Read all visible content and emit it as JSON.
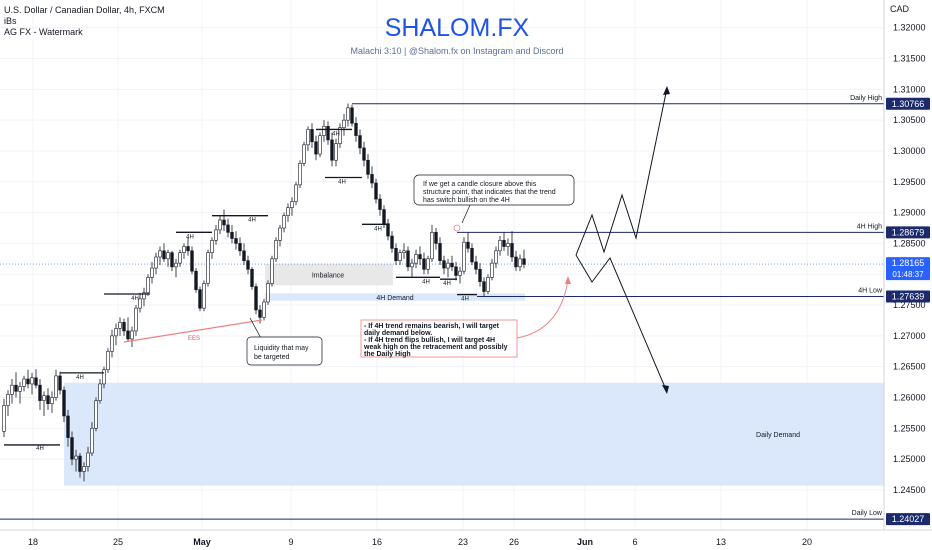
{
  "header": {
    "symbol_line": "U.S. Dollar / Canadian Dollar, 4h, FXCM",
    "indicator_1": "iBs",
    "indicator_2": "AG FX - Watermark",
    "brand": "SHALOM.FX",
    "tagline": "Malachi 3:10 | @Shalom.fx on Instagram and Discord",
    "currency": "CAD"
  },
  "colors": {
    "candle": "#131722",
    "brand": "#1e53e5",
    "level_line": "#1a2a6c",
    "label_bg": "#1a2a6c",
    "demand_fill": "#dbe8fc",
    "imbalance_fill": "#e8e8e8",
    "ees_line": "#f08080",
    "note_border": "#f08080",
    "grid": "#f0f3fa"
  },
  "chart_data": {
    "type": "candlestick",
    "y_axis": {
      "ylim": [
        1.2385,
        1.3245
      ],
      "ticks": [
        "1.32000",
        "1.31500",
        "1.31000",
        "1.30500",
        "1.30000",
        "1.29500",
        "1.29000",
        "1.28500",
        "1.28000",
        "1.27500",
        "1.27000",
        "1.26500",
        "1.26000",
        "1.25500",
        "1.25000",
        "1.24500"
      ]
    },
    "x_axis": {
      "tick_labels": [
        "18",
        "25",
        "May",
        "9",
        "16",
        "23",
        "26",
        "Jun",
        "6",
        "13",
        "20"
      ]
    },
    "current_price": {
      "value": "1.28165",
      "countdown": "01:48:37"
    },
    "levels": [
      {
        "name": "Daily High",
        "price": 1.30766,
        "label": "1.30766"
      },
      {
        "name": "4H High",
        "price": 1.28679,
        "label": "1.28679"
      },
      {
        "name": "4H Low",
        "price": 1.27639,
        "label": "1.27639"
      },
      {
        "name": "Daily Low",
        "price": 1.24027,
        "label": "1.24027"
      }
    ],
    "zones": [
      {
        "label": "Daily Demand",
        "top": 1.2624,
        "bottom": 1.2457
      },
      {
        "label": "Imbalance",
        "top": 1.2817,
        "bottom": 1.2782
      },
      {
        "label": "4H Demand",
        "top": 1.2769,
        "bottom": 1.2757
      }
    ],
    "structure_labels": [
      "4H",
      "4H",
      "4H",
      "4H",
      "4H",
      "4H",
      "4H",
      "4H",
      "4H",
      "4H",
      "4H"
    ],
    "ees_label": "EES",
    "annotations": {
      "liquidity": [
        "Liquidity that may",
        "be targeted"
      ],
      "closure": [
        "If we get a candle closure above this",
        "structure point, that indicates that the trend",
        "has switch bullish on the 4H"
      ],
      "plan": [
        "- If 4H trend remains bearish, I will target",
        "daily demand below.",
        "- If 4H trend flips bullish, I will target 4H",
        "weak high  on the retracement and possibly",
        "the Daily High"
      ]
    },
    "candles": [
      [
        1.2545,
        1.2598,
        1.2536,
        1.2587
      ],
      [
        1.2587,
        1.2612,
        1.257,
        1.2605
      ],
      [
        1.2605,
        1.263,
        1.259,
        1.262
      ],
      [
        1.262,
        1.2641,
        1.26,
        1.261
      ],
      [
        1.261,
        1.2625,
        1.259,
        1.2618
      ],
      [
        1.2618,
        1.2635,
        1.261,
        1.263
      ],
      [
        1.263,
        1.2645,
        1.2615,
        1.2622
      ],
      [
        1.2622,
        1.264,
        1.2605,
        1.2632
      ],
      [
        1.2632,
        1.2646,
        1.2615,
        1.262
      ],
      [
        1.262,
        1.263,
        1.258,
        1.2595
      ],
      [
        1.2595,
        1.261,
        1.257,
        1.2603
      ],
      [
        1.2603,
        1.2615,
        1.258,
        1.259
      ],
      [
        1.259,
        1.261,
        1.2575,
        1.26
      ],
      [
        1.26,
        1.2645,
        1.2595,
        1.2635
      ],
      [
        1.2635,
        1.2642,
        1.2605,
        1.2612
      ],
      [
        1.2612,
        1.2618,
        1.256,
        1.257
      ],
      [
        1.257,
        1.258,
        1.252,
        1.2535
      ],
      [
        1.2535,
        1.2545,
        1.249,
        1.25
      ],
      [
        1.25,
        1.2515,
        1.248,
        1.2505
      ],
      [
        1.2505,
        1.251,
        1.247,
        1.248
      ],
      [
        1.248,
        1.2495,
        1.2464,
        1.2488
      ],
      [
        1.2488,
        1.252,
        1.248,
        1.251
      ],
      [
        1.251,
        1.256,
        1.2505,
        1.255
      ],
      [
        1.255,
        1.26,
        1.2545,
        1.2595
      ],
      [
        1.2595,
        1.263,
        1.259,
        1.2622
      ],
      [
        1.2622,
        1.265,
        1.2615,
        1.2645
      ],
      [
        1.2645,
        1.268,
        1.264,
        1.2675
      ],
      [
        1.2675,
        1.271,
        1.2665,
        1.27
      ],
      [
        1.27,
        1.272,
        1.2685,
        1.2712
      ],
      [
        1.2712,
        1.273,
        1.27,
        1.2722
      ],
      [
        1.2722,
        1.2728,
        1.27,
        1.2708
      ],
      [
        1.2708,
        1.273,
        1.269,
        1.2695
      ],
      [
        1.2695,
        1.2715,
        1.2682,
        1.2708
      ],
      [
        1.2708,
        1.275,
        1.27,
        1.2745
      ],
      [
        1.2745,
        1.277,
        1.2738,
        1.276
      ],
      [
        1.276,
        1.2778,
        1.2748,
        1.277
      ],
      [
        1.277,
        1.28,
        1.2765,
        1.2795
      ],
      [
        1.2795,
        1.282,
        1.2785,
        1.281
      ],
      [
        1.281,
        1.2835,
        1.28,
        1.2828
      ],
      [
        1.2828,
        1.2845,
        1.2815,
        1.2838
      ],
      [
        1.2838,
        1.285,
        1.282,
        1.2825
      ],
      [
        1.2825,
        1.284,
        1.2812,
        1.2835
      ],
      [
        1.2835,
        1.2838,
        1.2805,
        1.2812
      ],
      [
        1.2812,
        1.2825,
        1.2795,
        1.2818
      ],
      [
        1.2818,
        1.284,
        1.2812,
        1.2835
      ],
      [
        1.2835,
        1.285,
        1.2825,
        1.2845
      ],
      [
        1.2845,
        1.286,
        1.283,
        1.2838
      ],
      [
        1.2838,
        1.2845,
        1.28,
        1.2805
      ],
      [
        1.2805,
        1.281,
        1.277,
        1.2775
      ],
      [
        1.2775,
        1.278,
        1.274,
        1.2745
      ],
      [
        1.2745,
        1.279,
        1.274,
        1.2785
      ],
      [
        1.2785,
        1.284,
        1.278,
        1.2835
      ],
      [
        1.2835,
        1.286,
        1.2825,
        1.2855
      ],
      [
        1.2855,
        1.288,
        1.2848,
        1.2872
      ],
      [
        1.2872,
        1.2895,
        1.2865,
        1.2888
      ],
      [
        1.2888,
        1.2905,
        1.287,
        1.288
      ],
      [
        1.288,
        1.289,
        1.286,
        1.2868
      ],
      [
        1.2868,
        1.288,
        1.285,
        1.2858
      ],
      [
        1.2858,
        1.287,
        1.284,
        1.285
      ],
      [
        1.285,
        1.286,
        1.283,
        1.2838
      ],
      [
        1.2838,
        1.285,
        1.2815,
        1.2822
      ],
      [
        1.2822,
        1.283,
        1.28,
        1.2808
      ],
      [
        1.2808,
        1.2812,
        1.2775,
        1.278
      ],
      [
        1.278,
        1.2785,
        1.2735,
        1.2742
      ],
      [
        1.2742,
        1.275,
        1.272,
        1.273
      ],
      [
        1.273,
        1.276,
        1.2725,
        1.2755
      ],
      [
        1.2755,
        1.279,
        1.275,
        1.2785
      ],
      [
        1.2785,
        1.283,
        1.278,
        1.2825
      ],
      [
        1.2825,
        1.286,
        1.282,
        1.2855
      ],
      [
        1.2855,
        1.288,
        1.2845,
        1.2875
      ],
      [
        1.2875,
        1.29,
        1.2868,
        1.2895
      ],
      [
        1.2895,
        1.2915,
        1.2885,
        1.2908
      ],
      [
        1.2908,
        1.2925,
        1.2895,
        1.2918
      ],
      [
        1.2918,
        1.295,
        1.2912,
        1.2945
      ],
      [
        1.2945,
        1.2985,
        1.294,
        1.298
      ],
      [
        1.298,
        1.3015,
        1.2975,
        1.301
      ],
      [
        1.301,
        1.304,
        1.3,
        1.3035
      ],
      [
        1.3035,
        1.3045,
        1.3005,
        1.3015
      ],
      [
        1.3015,
        1.3025,
        1.2985,
        1.2995
      ],
      [
        1.2995,
        1.303,
        1.299,
        1.3025
      ],
      [
        1.3025,
        1.305,
        1.3015,
        1.304
      ],
      [
        1.304,
        1.3048,
        1.301,
        1.3018
      ],
      [
        1.3018,
        1.303,
        1.2975,
        1.2985
      ],
      [
        1.2985,
        1.302,
        1.2975,
        1.3012
      ],
      [
        1.3012,
        1.3045,
        1.3005,
        1.3038
      ],
      [
        1.3038,
        1.306,
        1.3025,
        1.305
      ],
      [
        1.305,
        1.3077,
        1.304,
        1.307
      ],
      [
        1.307,
        1.3075,
        1.304,
        1.3045
      ],
      [
        1.3045,
        1.3055,
        1.3015,
        1.3025
      ],
      [
        1.3025,
        1.3035,
        1.2995,
        1.3005
      ],
      [
        1.3005,
        1.3015,
        1.2975,
        1.2985
      ],
      [
        1.2985,
        1.2995,
        1.2955,
        1.2962
      ],
      [
        1.2962,
        1.2975,
        1.294,
        1.2948
      ],
      [
        1.2948,
        1.2955,
        1.2915,
        1.2922
      ],
      [
        1.2922,
        1.293,
        1.2895,
        1.2905
      ],
      [
        1.2905,
        1.2912,
        1.2875,
        1.2882
      ],
      [
        1.2882,
        1.289,
        1.2855,
        1.2862
      ],
      [
        1.2862,
        1.287,
        1.2835,
        1.2842
      ],
      [
        1.2842,
        1.285,
        1.2815,
        1.2822
      ],
      [
        1.2822,
        1.284,
        1.2815,
        1.2835
      ],
      [
        1.2835,
        1.285,
        1.2825,
        1.2838
      ],
      [
        1.2838,
        1.2845,
        1.2805,
        1.2812
      ],
      [
        1.2812,
        1.2825,
        1.2795,
        1.2818
      ],
      [
        1.2818,
        1.284,
        1.281,
        1.2832
      ],
      [
        1.2832,
        1.2845,
        1.2815,
        1.2825
      ],
      [
        1.2825,
        1.2835,
        1.28,
        1.2808
      ],
      [
        1.2808,
        1.283,
        1.28,
        1.2825
      ],
      [
        1.2825,
        1.288,
        1.282,
        1.2868
      ],
      [
        1.2868,
        1.2875,
        1.284,
        1.285
      ],
      [
        1.285,
        1.286,
        1.2815,
        1.2822
      ],
      [
        1.2822,
        1.283,
        1.28,
        1.281
      ],
      [
        1.281,
        1.2825,
        1.2795,
        1.2818
      ],
      [
        1.2818,
        1.283,
        1.2805,
        1.2812
      ],
      [
        1.2812,
        1.282,
        1.279,
        1.2798
      ],
      [
        1.2798,
        1.2812,
        1.2785,
        1.2805
      ],
      [
        1.2805,
        1.286,
        1.28,
        1.2852
      ],
      [
        1.2852,
        1.2868,
        1.2835,
        1.2842
      ],
      [
        1.2842,
        1.285,
        1.2815,
        1.282
      ],
      [
        1.282,
        1.283,
        1.28,
        1.2808
      ],
      [
        1.2808,
        1.2818,
        1.278,
        1.2788
      ],
      [
        1.2788,
        1.2795,
        1.2764,
        1.2772
      ],
      [
        1.2772,
        1.28,
        1.2768,
        1.2795
      ],
      [
        1.2795,
        1.2825,
        1.279,
        1.2818
      ],
      [
        1.2818,
        1.2845,
        1.281,
        1.2838
      ],
      [
        1.2838,
        1.2862,
        1.283,
        1.2855
      ],
      [
        1.2855,
        1.2868,
        1.2838,
        1.2845
      ],
      [
        1.2845,
        1.2858,
        1.283,
        1.285
      ],
      [
        1.285,
        1.287,
        1.282,
        1.2828
      ],
      [
        1.2828,
        1.2838,
        1.2805,
        1.2812
      ],
      [
        1.2812,
        1.2832,
        1.2805,
        1.2825
      ],
      [
        1.2825,
        1.284,
        1.281,
        1.2816
      ]
    ]
  }
}
